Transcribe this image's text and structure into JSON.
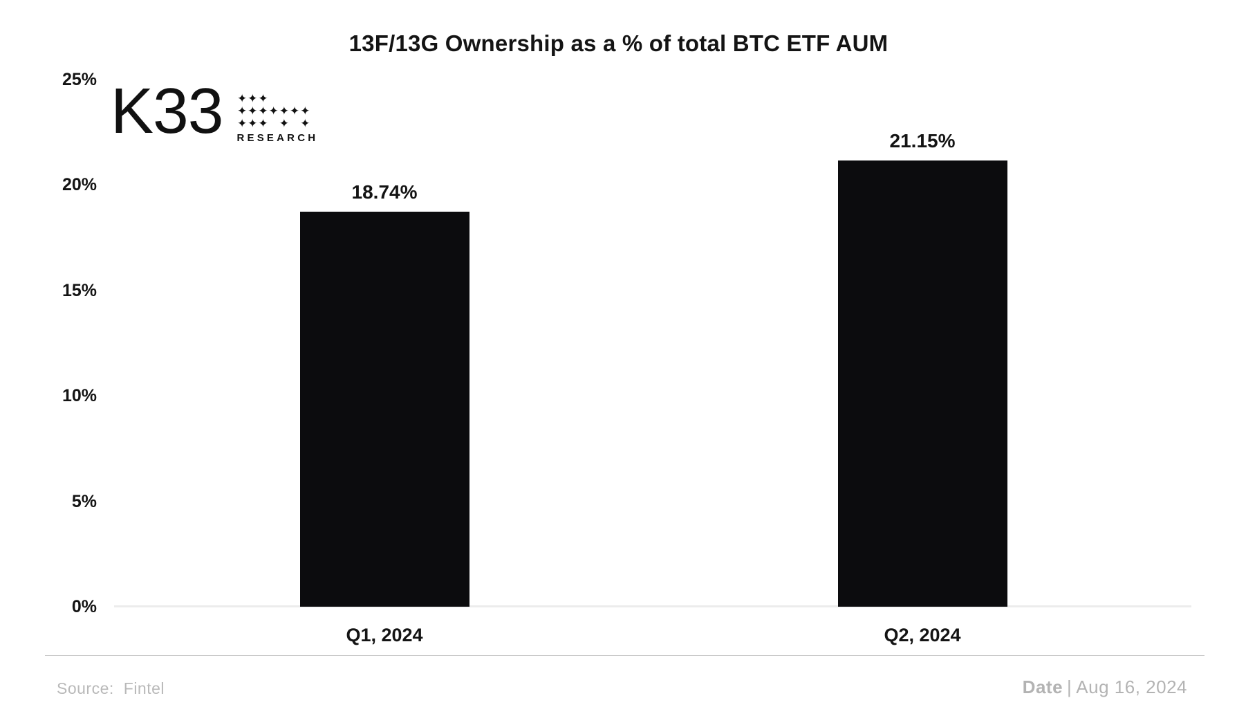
{
  "logo": {
    "name": "K33",
    "subtitle": "RESEARCH",
    "diamond_glyph": "✦"
  },
  "chart_data": {
    "type": "bar",
    "title": "13F/13G Ownership as a % of total BTC ETF AUM",
    "categories": [
      "Q1, 2024",
      "Q2, 2024"
    ],
    "values": [
      18.74,
      21.15
    ],
    "value_labels": [
      "18.74%",
      "21.15%"
    ],
    "xlabel": "",
    "ylabel": "",
    "ylim": [
      0,
      25
    ],
    "yticks": [
      {
        "value": 25,
        "label": "25%"
      },
      {
        "value": 20,
        "label": "20%"
      },
      {
        "value": 15,
        "label": "15%"
      },
      {
        "value": 10,
        "label": "10%"
      },
      {
        "value": 5,
        "label": "5%"
      },
      {
        "value": 0,
        "label": "0%"
      }
    ],
    "grid": "baseline-only",
    "legend": "none",
    "bar_color": "#0c0c0e"
  },
  "footer": {
    "source_label": "Source:",
    "source_value": "Fintel",
    "date_label": "Date",
    "separator": "|",
    "date_value": "Aug 16, 2024"
  }
}
